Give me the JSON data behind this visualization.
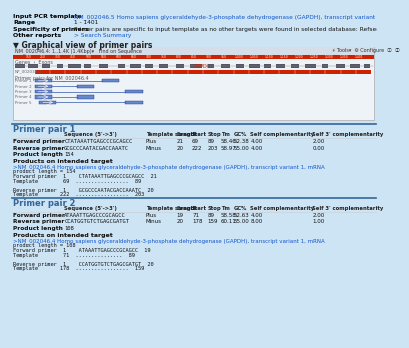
{
  "bg_color": "#cde4f5",
  "box_bg": "#e8f0f8",
  "white_bg": "#ffffff",
  "title_section": {
    "rows": [
      {
        "label": "Input PCR template",
        "value": "NM_002046.5 Homo sapiens glyceraldehyde-3-phosphate dehydrogenase (GAPDH), transcript variant 1, mRNA",
        "is_link": true
      },
      {
        "label": "Range",
        "value": "1 - 1401"
      },
      {
        "label": "Specificity of primers",
        "value": "Primer pairs are specific to input template as no other targets were found in selected database: Refseq mRNA (Organism limited to Homo sapiens)"
      },
      {
        "label": "Other reports",
        "value": "> Search Summary",
        "is_link": true
      }
    ]
  },
  "graphical_title": "▼ Graphical view of primer pairs",
  "primer_color": "#3355aa",
  "sections": [
    {
      "title": "Primer pair 1",
      "headers": [
        "Sequence (5'→>3')",
        "Template strand",
        "Length",
        "Start",
        "Stop",
        "Tm",
        "GC%",
        "Self complementarity",
        "Self 3' complementarity"
      ],
      "rows": [
        {
          "label": "Forward primer",
          "seq": "CTATAAATTGAGCCCGCAGCC",
          "strand": "Plus",
          "length": "21",
          "start": "69",
          "stop": "89",
          "tm": "58.46",
          "gc": "52.38",
          "self_comp": "4.00",
          "self3": "2.00"
        },
        {
          "label": "Reverse primer",
          "seq": "GCGCCCAATACGACCAAATC",
          "strand": "Minus",
          "length": "20",
          "start": "222",
          "stop": "203",
          "tm": "58.97",
          "gc": "55.00",
          "self_comp": "4.00",
          "self3": "0.00"
        },
        {
          "label": "Product length",
          "seq": "154",
          "strand": "",
          "length": "",
          "start": "",
          "stop": "",
          "tm": "",
          "gc": "",
          "self_comp": "",
          "self3": ""
        }
      ],
      "intended_target": ">NM_002046.4 Homo sapiens glyceraldehyde-3-phosphate dehydrogenase (GAPDH), transcript variant 1, mRNA",
      "product_lines": [
        "product length = 154",
        "Forward primer  1    CTATAAATTGAGCCCGCAGCC  21",
        "Template        69  .................  89",
        "",
        "Reverse primer  1    GCGCCCAATACGACCAAATC  20",
        "Template       222  .................  203"
      ]
    },
    {
      "title": "Primer pair 2",
      "headers": [
        "Sequence (5'→>3')",
        "Template strand",
        "Length",
        "Start",
        "Stop",
        "Tm",
        "GC%",
        "Self complementarity",
        "Self 3' complementarity"
      ],
      "rows": [
        {
          "label": "Forward primer",
          "seq": "ATAAATTGAGCCCGCAGCC",
          "strand": "Plus",
          "length": "19",
          "start": "71",
          "stop": "89",
          "tm": "58.58",
          "gc": "52.63",
          "self_comp": "4.00",
          "self3": "2.00"
        },
        {
          "label": "Reverse primer",
          "seq": "CCATGGTGTCTGAGCGATGT",
          "strand": "Minus",
          "length": "20",
          "start": "178",
          "stop": "159",
          "tm": "60.11",
          "gc": "55.00",
          "self_comp": "8.00",
          "self3": "1.00"
        },
        {
          "label": "Product length",
          "seq": "108",
          "strand": "",
          "length": "",
          "start": "",
          "stop": "",
          "tm": "",
          "gc": "",
          "self_comp": "",
          "self3": ""
        }
      ],
      "intended_target": ">NM_002046.4 Homo sapiens glyceraldehyde-3-phosphate dehydrogenase (GAPDH), transcript variant 1, mRNA",
      "product_lines": [
        "product length = 108",
        "Forward primer  1    ATAAATTGAGCCCGCAGCC  19",
        "Template        71  ...............  89",
        "",
        "Reverse primer  1    CCATGGTGTCTGAGCGATGT  20",
        "Template       178  .................  159"
      ]
    }
  ]
}
